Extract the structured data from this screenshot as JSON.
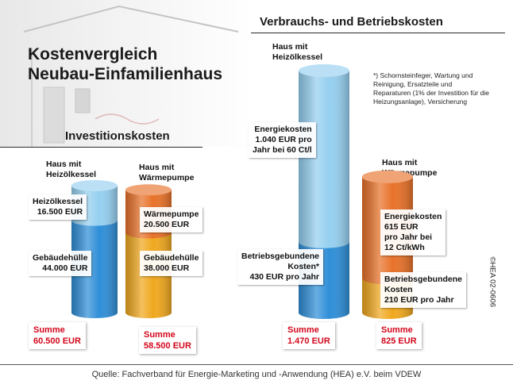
{
  "title_line1": "Kostenvergleich",
  "title_line2": "Neubau-Einfamilienhaus",
  "chart_data": [
    {
      "type": "bar",
      "stacked": true,
      "title": "Investitionskosten",
      "unit": "EUR",
      "categories": [
        "Haus mit Heizölkessel",
        "Haus mit Wärmepumpe"
      ],
      "series": [
        {
          "values": [
            44000,
            38000
          ],
          "colors": [
            "#2f8fd8",
            "#f0a81f"
          ]
        },
        {
          "values": [
            16500,
            20500
          ],
          "colors": [
            "#96d0f0",
            "#e8722a"
          ]
        }
      ],
      "totals": [
        60500,
        58500
      ]
    },
    {
      "type": "bar",
      "stacked": true,
      "title": "Verbrauchs- und Betriebskosten",
      "unit": "EUR pro Jahr",
      "categories": [
        "Haus mit Heizölkessel",
        "Haus mit Wärmepumpe"
      ],
      "series": [
        {
          "values": [
            430,
            210
          ],
          "colors": [
            "#2f8fd8",
            "#f0a81f"
          ]
        },
        {
          "values": [
            1040,
            615
          ],
          "colors": [
            "#96d0f0",
            "#e8722a"
          ]
        }
      ],
      "totals": [
        1470,
        825
      ]
    }
  ],
  "invest": {
    "oil": {
      "head": [
        "Haus mit",
        "Heizölkessel"
      ],
      "top_label": [
        "Heizölkessel",
        "16.500 EUR"
      ],
      "bottom_label": [
        "Gebäudehülle",
        "44.000 EUR"
      ],
      "sum_key": "Summe",
      "sum_value": "60.500 EUR"
    },
    "hp": {
      "head": [
        "Haus mit",
        "Wärmepumpe"
      ],
      "top_label": [
        "Wärmepumpe",
        "20.500 EUR"
      ],
      "bottom_label": [
        "Gebäudehülle",
        "38.000 EUR"
      ],
      "sum_key": "Summe",
      "sum_value": "58.500 EUR"
    }
  },
  "running": {
    "oil": {
      "head": [
        "Haus mit",
        "Heizölkessel"
      ],
      "top_label": [
        "Energiekosten",
        "1.040 EUR pro",
        "Jahr bei 60 Ct/l"
      ],
      "bottom_label": [
        "Betriebsgebundene",
        "Kosten*",
        "430 EUR pro Jahr"
      ],
      "sum_key": "Summe",
      "sum_value": "1.470 EUR"
    },
    "hp": {
      "head": [
        "Haus mit",
        "Wärmepumpe"
      ],
      "top_label": [
        "Energiekosten",
        "615 EUR",
        "pro Jahr bei",
        "12 Ct/kWh"
      ],
      "bottom_label": [
        "Betriebsgebundene",
        "Kosten",
        "210 EUR pro Jahr"
      ],
      "sum_key": "Summe",
      "sum_value": "825 EUR"
    }
  },
  "footnote": "*) Schornsteinfeger, Wartung und Reinigung, Ersatzteile und Reparaturen (1% der Investition für die Heizungsanlage), Versicherung",
  "source": "Quelle: Fachverband für Energie-Marketing und -Anwendung (HEA) e.V. beim VDEW",
  "copyright": "©HEA 02-0606"
}
